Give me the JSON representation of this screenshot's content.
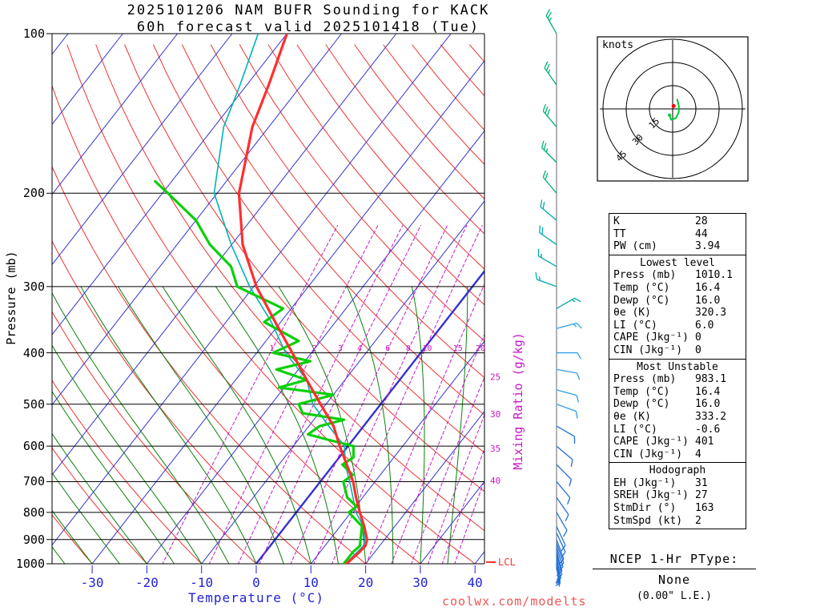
{
  "title": {
    "line1": "2025101206 NAM BUFR Sounding for KACK",
    "line2": "60h forecast valid 2025101418 (Tue)"
  },
  "watermark": "coolwx.com/modelts",
  "axes": {
    "pressure_label": "Pressure (mb)",
    "temperature_label": "Temperature (°C)",
    "mixing_ratio_label": "Mixing Ratio (g/kg)",
    "pressure_ticks": [
      100,
      200,
      300,
      400,
      500,
      600,
      700,
      800,
      900,
      1000
    ],
    "temperature_ticks": [
      -30,
      -20,
      -10,
      0,
      10,
      20,
      30,
      40
    ],
    "lcl_label": "LCL"
  },
  "hodograph": {
    "unit_label": "knots",
    "ring_labels_kt": [
      15,
      30,
      45
    ],
    "trace_uv_kt": [
      [
        3,
        6
      ],
      [
        4,
        2
      ],
      [
        4,
        -2
      ],
      [
        2,
        -6
      ],
      [
        -1,
        -7
      ],
      [
        -2,
        -4
      ]
    ],
    "storm_motion_uv_kt": [
      0.6,
      1.9
    ]
  },
  "stats": {
    "summary": [
      [
        "K",
        "28"
      ],
      [
        "TT",
        "44"
      ],
      [
        "PW (cm)",
        "3.94"
      ]
    ],
    "sections": [
      {
        "title": "Lowest level",
        "rows": [
          [
            "Press (mb)",
            "1010.1"
          ],
          [
            "Temp (°C)",
            "16.4"
          ],
          [
            "Dewp (°C)",
            "16.0"
          ],
          [
            "θe (K)",
            "320.3"
          ],
          [
            "LI (°C)",
            "6.0"
          ],
          [
            "CAPE (Jkg⁻¹)",
            "0"
          ],
          [
            "CIN (Jkg⁻¹)",
            "0"
          ]
        ]
      },
      {
        "title": "Most Unstable",
        "rows": [
          [
            "Press (mb)",
            "983.1"
          ],
          [
            "Temp (°C)",
            "16.4"
          ],
          [
            "Dewp (°C)",
            "16.0"
          ],
          [
            "θe (K)",
            "333.2"
          ],
          [
            "LI (°C)",
            "-0.6"
          ],
          [
            "CAPE (Jkg⁻¹)",
            "401"
          ],
          [
            "CIN (Jkg⁻¹)",
            "4"
          ]
        ]
      },
      {
        "title": "Hodograph",
        "rows": [
          [
            "EH (Jkg⁻¹)",
            "31"
          ],
          [
            "SREH (Jkg⁻¹)",
            "27"
          ],
          [
            "StmDir (°)",
            "163"
          ],
          [
            "StmSpd (kt)",
            "2"
          ]
        ]
      }
    ]
  },
  "ptype": {
    "label": "NCEP 1-Hr PType:",
    "value": "None",
    "liquid_equivalent": "(0.00\" L.E.)"
  },
  "chart_data": {
    "type": "skewt-log-p",
    "pressure_scale": "log",
    "pressure_range_mb": [
      100,
      1050
    ],
    "temperature_ticks_c": [
      -30,
      -20,
      -10,
      0,
      10,
      20,
      30,
      40
    ],
    "isotherm_step_c": 10,
    "dry_adiabat_step_c": 10,
    "moist_adiabat_step_c": 5,
    "moist_adiabat_top_mb": 300,
    "mixing_ratio_lines_gkg": [
      1,
      2,
      3,
      4,
      6,
      8,
      10,
      15,
      20,
      25,
      30,
      35,
      40
    ],
    "mixing_ratio_inline_label_values": [
      1,
      2,
      3,
      4,
      6,
      8,
      10,
      15,
      20
    ],
    "mixing_ratio_edge_label_values": [
      25,
      30,
      35,
      40
    ],
    "lcl_mb": 993,
    "temperature_profile": [
      [
        1010,
        16.4
      ],
      [
        1000,
        16.5
      ],
      [
        950,
        17.2
      ],
      [
        925,
        17.4
      ],
      [
        900,
        16.8
      ],
      [
        850,
        14.4
      ],
      [
        800,
        11.6
      ],
      [
        750,
        8.8
      ],
      [
        700,
        6.0
      ],
      [
        650,
        2.4
      ],
      [
        600,
        -1.5
      ],
      [
        550,
        -5.5
      ],
      [
        500,
        -11.0
      ],
      [
        450,
        -17.0
      ],
      [
        400,
        -23.5
      ],
      [
        350,
        -31.0
      ],
      [
        300,
        -39.5
      ],
      [
        250,
        -48.0
      ],
      [
        200,
        -56.0
      ],
      [
        150,
        -63.0
      ],
      [
        125,
        -66.0
      ],
      [
        100,
        -70.0
      ]
    ],
    "dewpoint_profile": [
      [
        1010,
        16.0
      ],
      [
        1000,
        16.0
      ],
      [
        950,
        16.0
      ],
      [
        925,
        16.4
      ],
      [
        900,
        15.6
      ],
      [
        850,
        14.0
      ],
      [
        800,
        9.6
      ],
      [
        780,
        10.2
      ],
      [
        750,
        7.2
      ],
      [
        700,
        4.2
      ],
      [
        680,
        5.0
      ],
      [
        650,
        1.6
      ],
      [
        630,
        2.6
      ],
      [
        600,
        1.0
      ],
      [
        585,
        -4.0
      ],
      [
        570,
        -9.0
      ],
      [
        550,
        -8.0
      ],
      [
        535,
        -4.5
      ],
      [
        520,
        -13.0
      ],
      [
        500,
        -15.0
      ],
      [
        480,
        -10.0
      ],
      [
        465,
        -21.0
      ],
      [
        450,
        -17.0
      ],
      [
        430,
        -24.0
      ],
      [
        415,
        -19.0
      ],
      [
        400,
        -27.0
      ],
      [
        380,
        -24.0
      ],
      [
        350,
        -33.0
      ],
      [
        330,
        -31.5
      ],
      [
        300,
        -43.0
      ],
      [
        275,
        -47.0
      ],
      [
        250,
        -54.0
      ],
      [
        225,
        -60.0
      ],
      [
        200,
        -69.0
      ],
      [
        190,
        -73.0
      ]
    ],
    "parcel": {
      "start_mb": 983.1,
      "start_temp_c": 16.4,
      "start_dewp_c": 16.0
    },
    "wind_barbs": [
      [
        100,
        330,
        25
      ],
      [
        125,
        325,
        25
      ],
      [
        150,
        320,
        30
      ],
      [
        175,
        315,
        25
      ],
      [
        200,
        320,
        20
      ],
      [
        225,
        310,
        20
      ],
      [
        250,
        305,
        20
      ],
      [
        275,
        300,
        15
      ],
      [
        300,
        290,
        15
      ],
      [
        330,
        60,
        15
      ],
      [
        360,
        75,
        15
      ],
      [
        400,
        90,
        12
      ],
      [
        430,
        100,
        12
      ],
      [
        470,
        105,
        10
      ],
      [
        500,
        110,
        10
      ],
      [
        550,
        120,
        10
      ],
      [
        600,
        130,
        10
      ],
      [
        650,
        135,
        12
      ],
      [
        700,
        140,
        12
      ],
      [
        750,
        145,
        10
      ],
      [
        800,
        150,
        10
      ],
      [
        850,
        155,
        10
      ],
      [
        875,
        155,
        12
      ],
      [
        900,
        160,
        12
      ],
      [
        915,
        160,
        12
      ],
      [
        930,
        162,
        10
      ],
      [
        945,
        165,
        10
      ],
      [
        960,
        165,
        8
      ],
      [
        975,
        168,
        8
      ],
      [
        990,
        170,
        7
      ],
      [
        1000,
        170,
        5
      ],
      [
        1010,
        172,
        5
      ]
    ]
  },
  "colors": {
    "isotherm": "#3333cc",
    "dry_adiabat": "#ee3333",
    "moist_adiabat": "#0a800a",
    "mixing_ratio": "#c818c8",
    "temperature_trace": "#ff2e2e",
    "dewpoint_trace": "#0ad00a",
    "wetbulb_trace": "#00b4b4",
    "pressure_line": "#000000",
    "temp_axis_text": "#2222dd",
    "watermark": "#ee5555",
    "barb_green": "#00b377",
    "barb_teal": "#00aaaa",
    "barb_lightblue": "#2e9fe6",
    "barb_blue": "#1f6fd8",
    "hodo_trace": "#00c832",
    "storm_dot": "#ff0000"
  }
}
